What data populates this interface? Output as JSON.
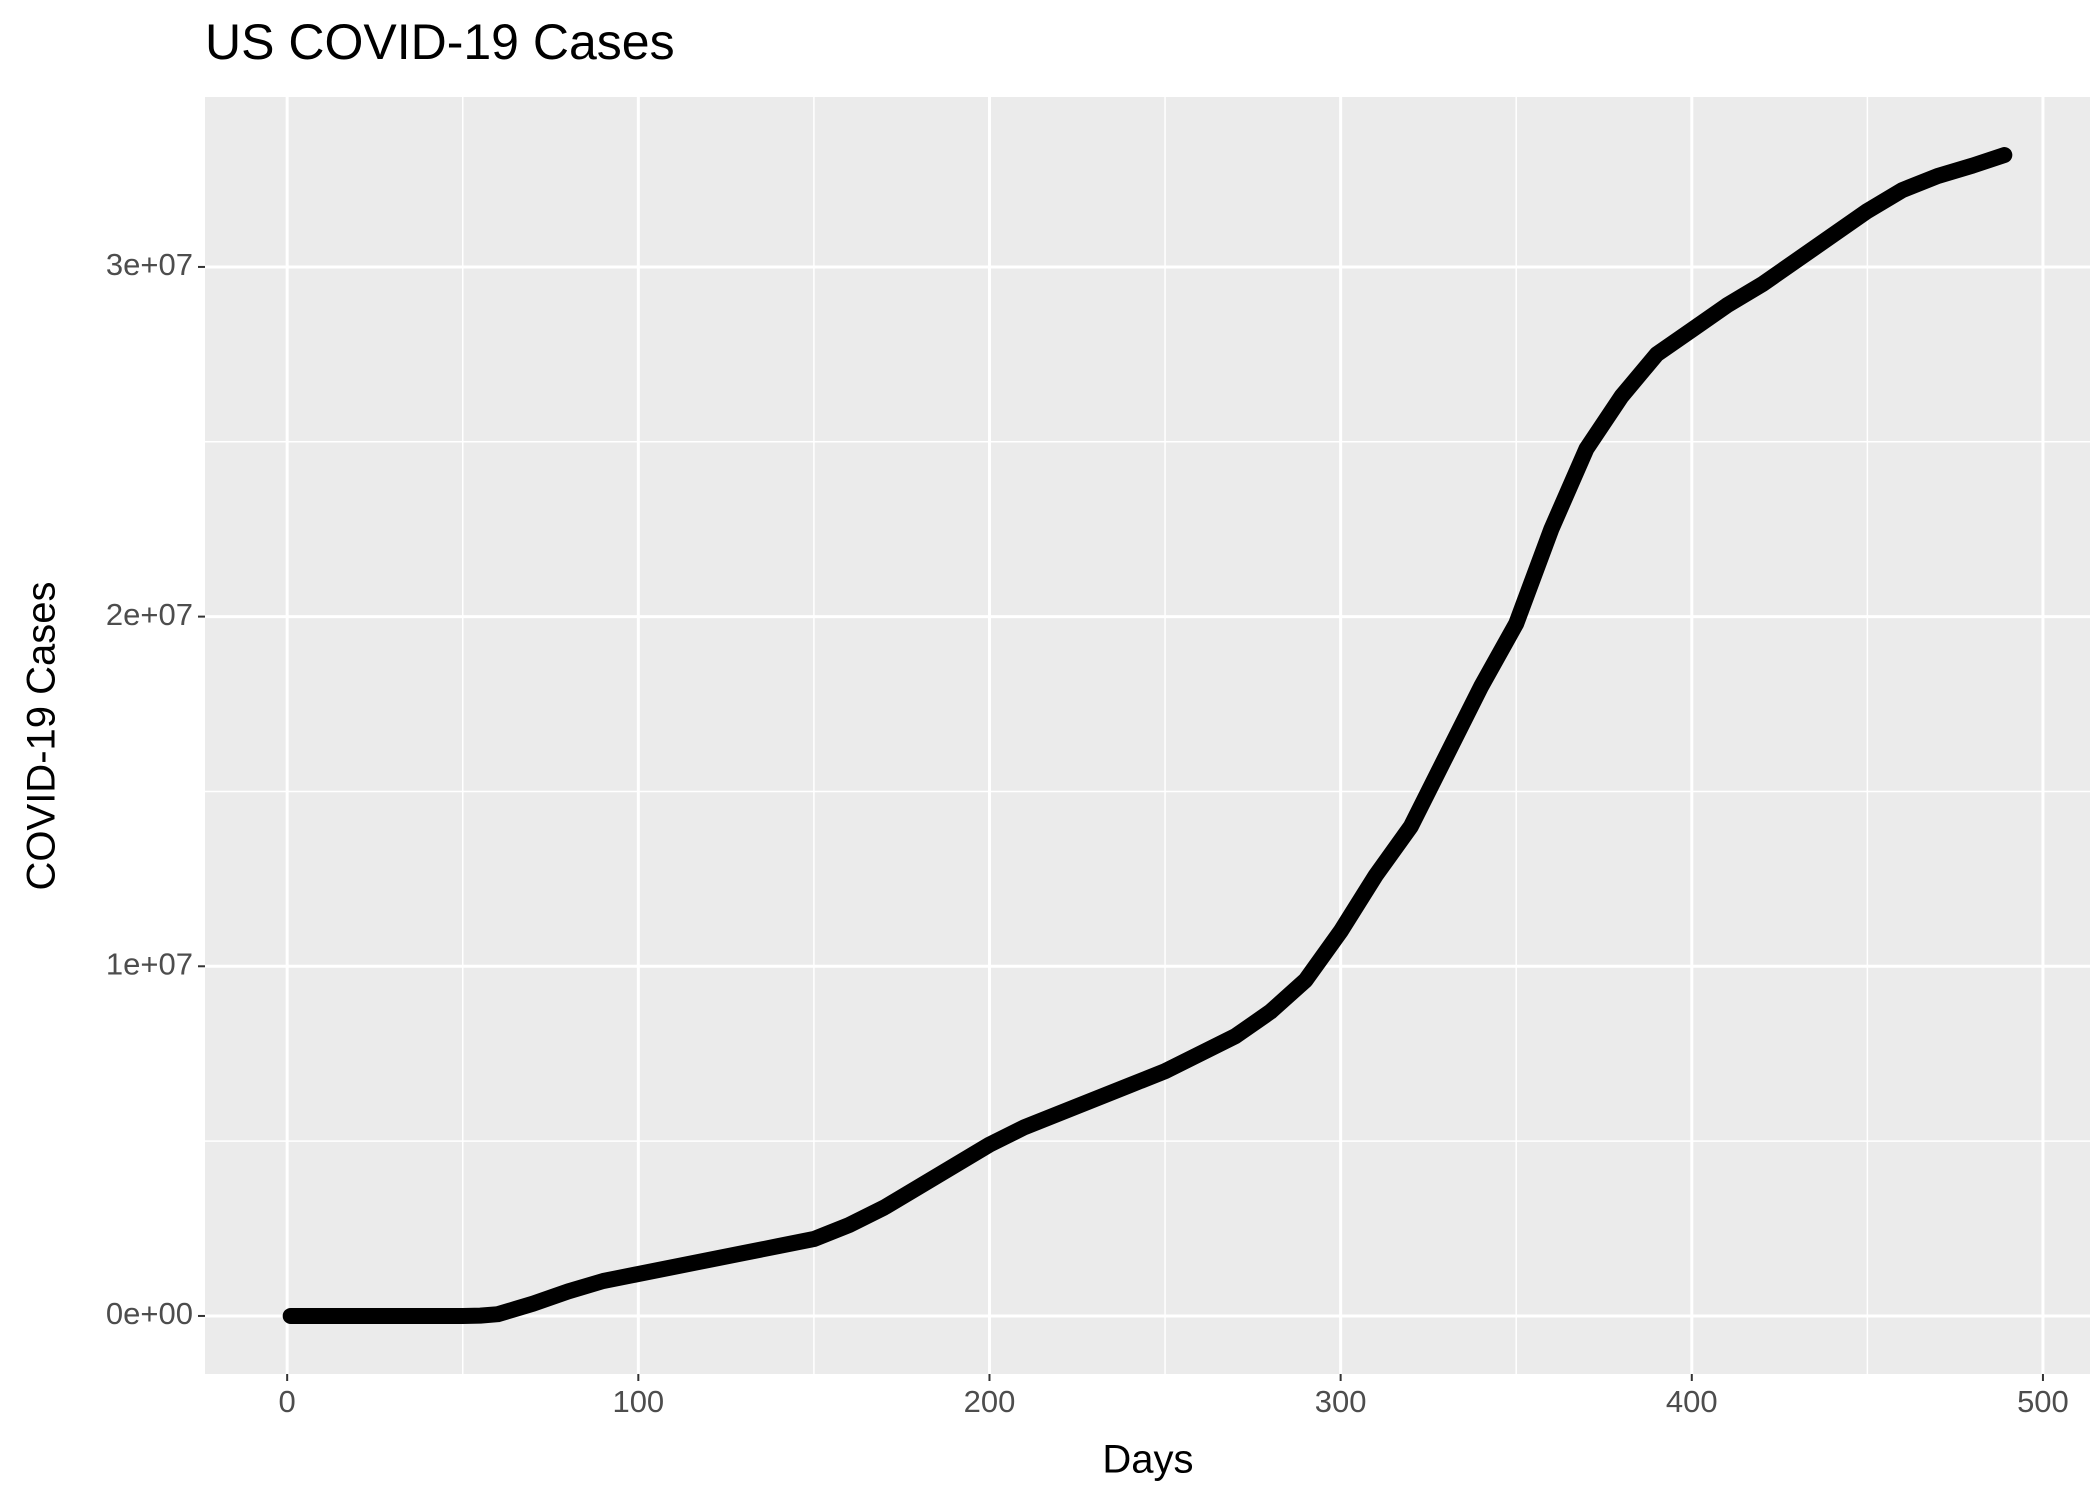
{
  "chart_data": {
    "type": "line",
    "title": "US COVID-19 Cases",
    "x_label": "Days",
    "y_label": "COVID-19 Cases",
    "x": [
      1,
      10,
      20,
      30,
      40,
      50,
      55,
      60,
      65,
      70,
      80,
      90,
      100,
      110,
      120,
      130,
      140,
      150,
      160,
      170,
      180,
      190,
      200,
      210,
      220,
      230,
      240,
      250,
      260,
      270,
      280,
      290,
      300,
      310,
      320,
      330,
      340,
      350,
      360,
      370,
      380,
      390,
      400,
      410,
      420,
      430,
      440,
      450,
      460,
      470,
      480,
      489
    ],
    "series": [
      {
        "name": "cases",
        "color": "#000000",
        "values": [
          0,
          0,
          0,
          0,
          0,
          0,
          10000,
          50000,
          200000,
          350000,
          700000,
          1000000,
          1200000,
          1400000,
          1600000,
          1800000,
          2000000,
          2200000,
          2600000,
          3100000,
          3700000,
          4300000,
          4900000,
          5400000,
          5800000,
          6200000,
          6600000,
          7000000,
          7500000,
          8000000,
          8700000,
          9600000,
          11000000,
          12600000,
          14000000,
          16000000,
          18000000,
          19800000,
          22500000,
          24800000,
          26300000,
          27500000,
          28200000,
          28900000,
          29500000,
          30200000,
          30900000,
          31600000,
          32200000,
          32600000,
          32900000,
          33200000
        ]
      }
    ],
    "xlim": [
      -23.4,
      513.4
    ],
    "ylim": [
      -1660000,
      34860000
    ],
    "xticks": [
      0,
      100,
      200,
      300,
      400,
      500
    ],
    "yticks": [
      {
        "value": 0,
        "label": "0e+00"
      },
      {
        "value": 10000000,
        "label": "1e+07"
      },
      {
        "value": 20000000,
        "label": "2e+07"
      },
      {
        "value": 30000000,
        "label": "3e+07"
      }
    ],
    "x_minor_grid": [
      50,
      150,
      250,
      350,
      450
    ],
    "y_minor_grid": [
      5000000,
      15000000,
      25000000
    ],
    "grid": true,
    "panel_color": "#ebebeb"
  }
}
